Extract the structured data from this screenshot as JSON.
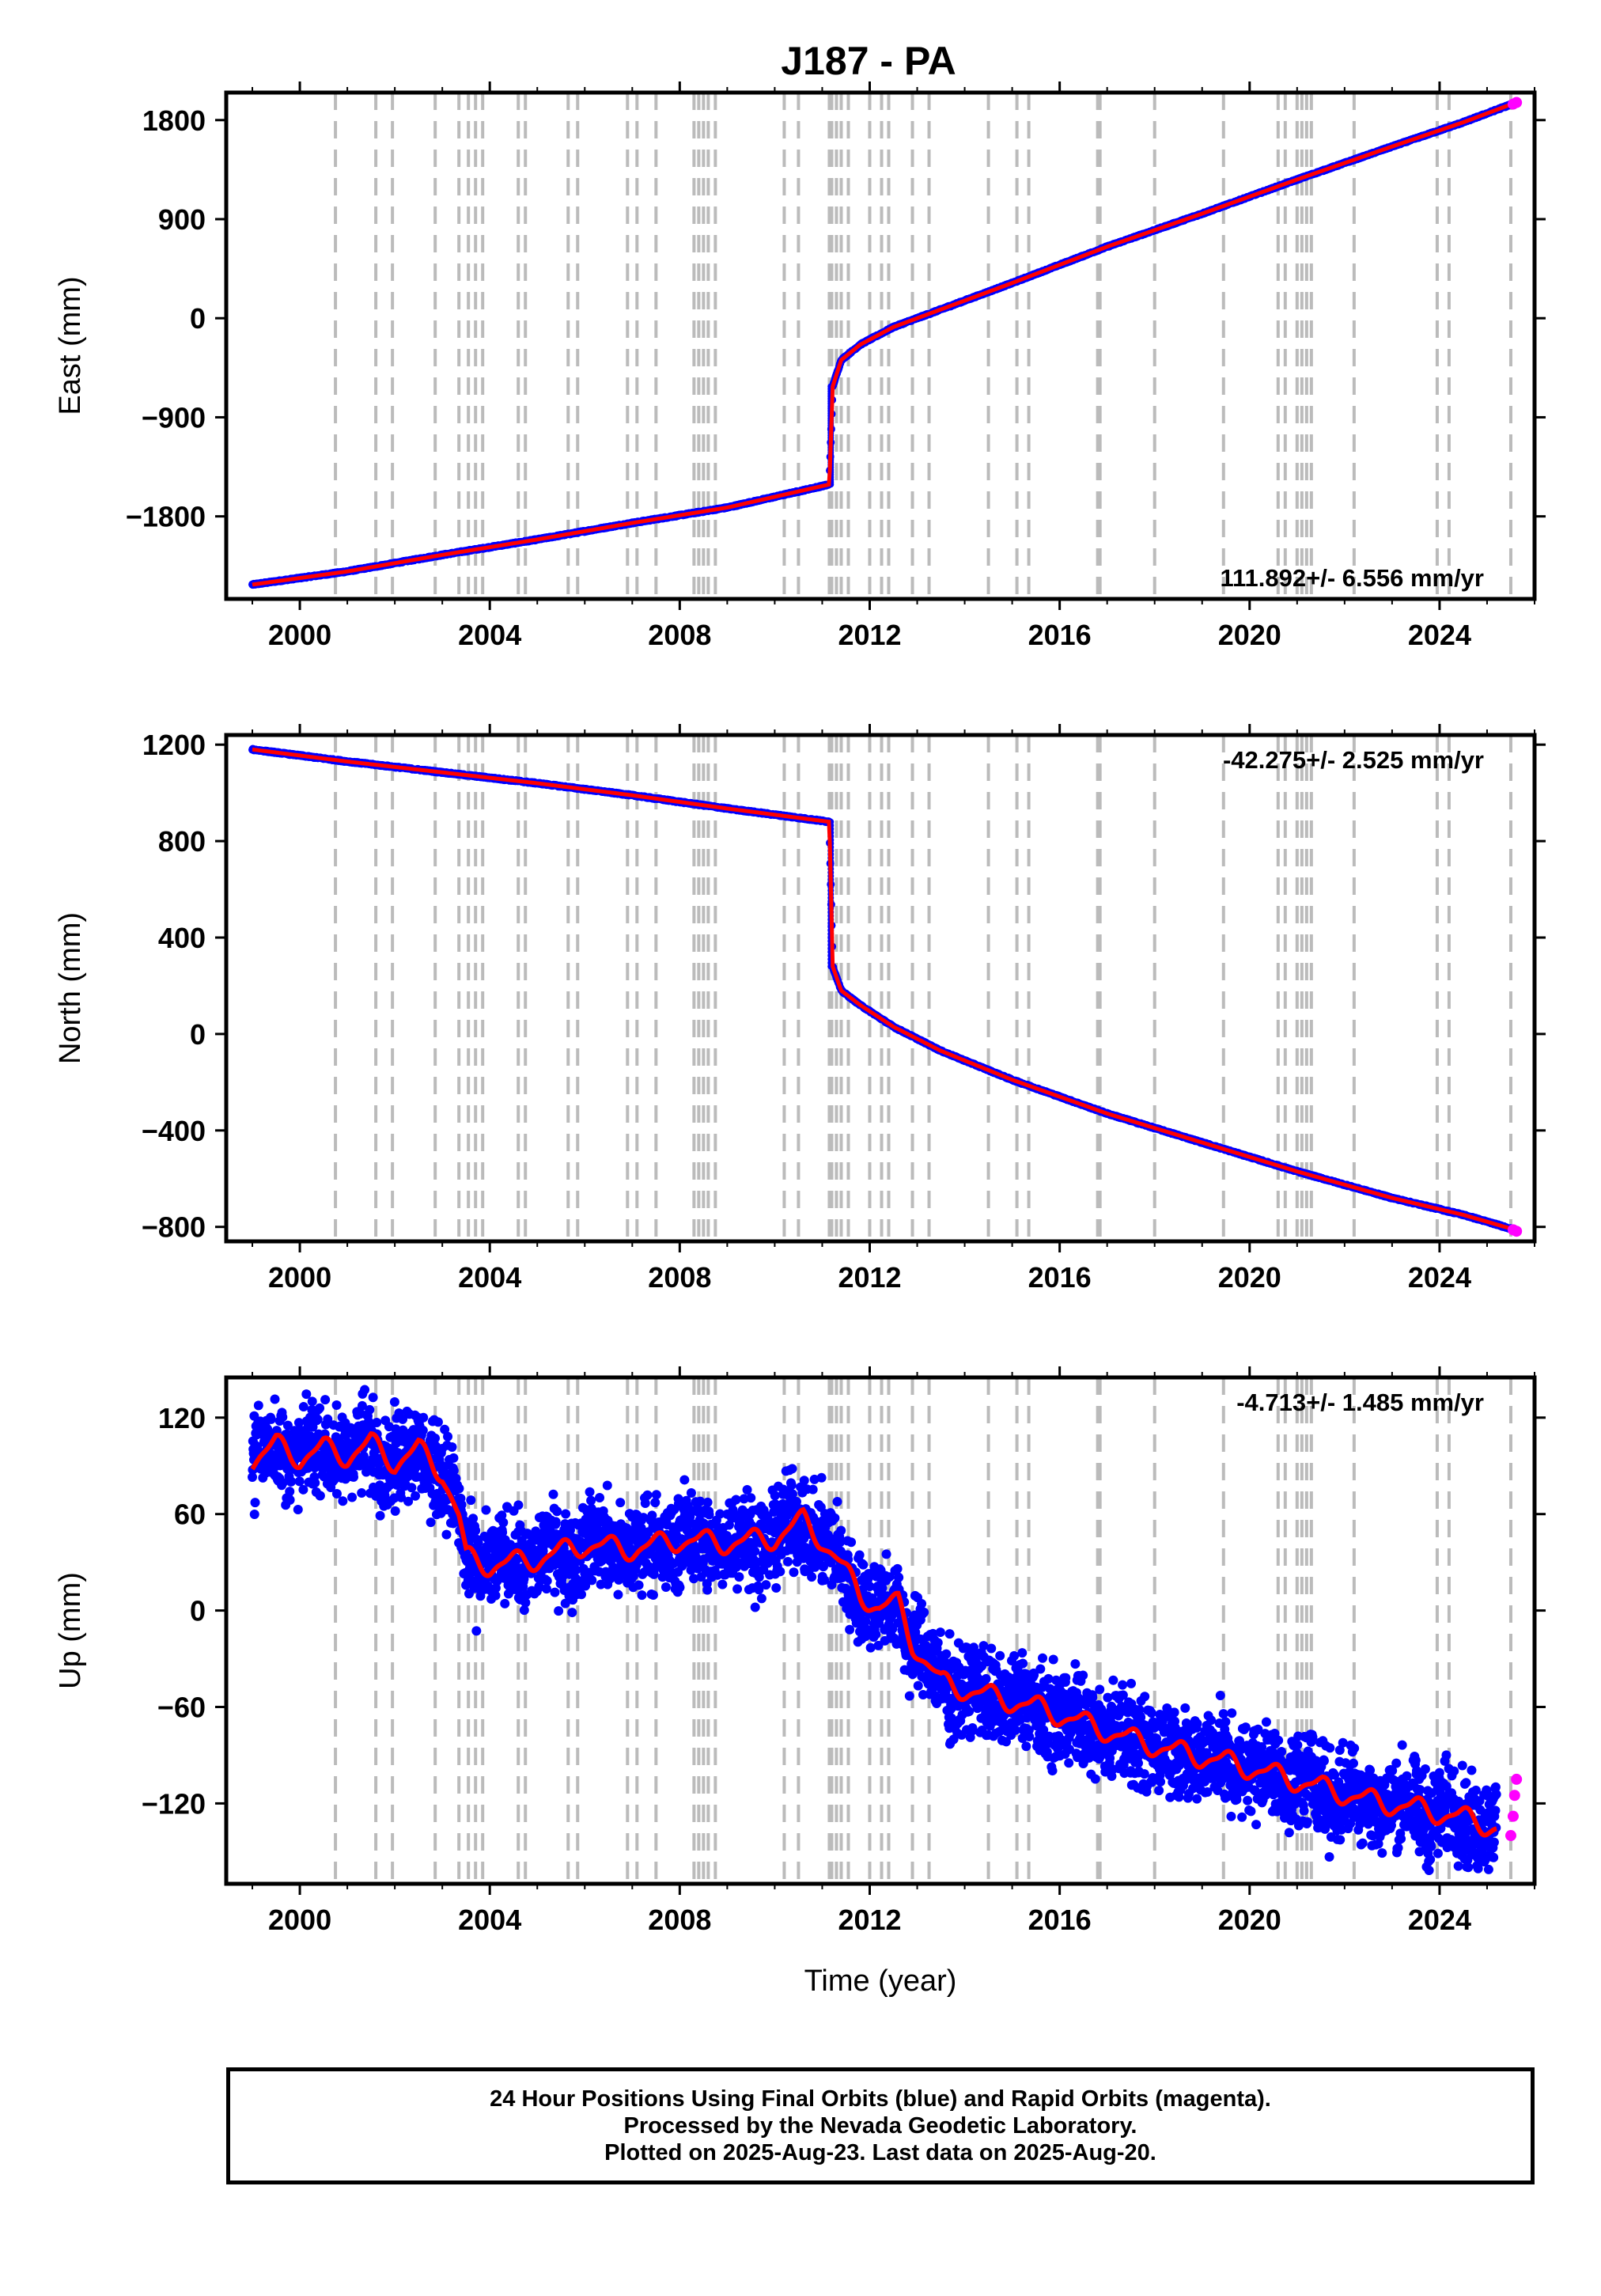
{
  "title": "J187 - PA",
  "caption": {
    "lines": [
      "24 Hour Positions Using Final Orbits (blue) and Rapid Orbits (magenta).",
      "Processed by the Nevada Geodetic Laboratory.",
      "Plotted on 2025-Aug-23. Last data on 2025-Aug-20."
    ]
  },
  "colors": {
    "final_orbits": "#0000ff",
    "rapid_orbits": "#ff00ff",
    "model": "#ff0000",
    "event_lines": "#bbbbbb"
  },
  "chart_data": [
    {
      "type": "scatter",
      "component": "east",
      "ylabel": "East (mm)",
      "xlabel": "",
      "xlim": [
        1998.45,
        2026.0
      ],
      "ylim": [
        -2550,
        2050
      ],
      "xticks": [
        2000,
        2004,
        2008,
        2012,
        2016,
        2020,
        2024
      ],
      "yticks": [
        1800,
        900,
        0,
        -900,
        -1800
      ],
      "ytick_labels": [
        "1800",
        "900",
        "0",
        "−900",
        "−1800"
      ],
      "rate_label": "111.892+/- 6.556 mm/yr",
      "rate_position": "bottom-right",
      "series": [
        {
          "name": "Final Orbits",
          "color": "#0000ff",
          "x": [
            1999.0,
            2001.0,
            2003.0,
            2005.0,
            2007.0,
            2009.0,
            2011.15,
            2011.22,
            2011.4,
            2011.8,
            2012.5,
            2013.5,
            2015.0,
            2017.0,
            2019.0,
            2021.0,
            2023.0,
            2024.5,
            2025.55
          ],
          "y": [
            -2420,
            -2300,
            -2150,
            -2010,
            -1860,
            -1720,
            -1510,
            -620,
            -380,
            -240,
            -80,
            80,
            320,
            650,
            950,
            1260,
            1560,
            1780,
            1950
          ]
        },
        {
          "name": "Rapid Orbits",
          "color": "#ff00ff",
          "x": [
            2025.55,
            2025.62
          ],
          "y": [
            1945,
            1960
          ]
        }
      ]
    },
    {
      "type": "scatter",
      "component": "north",
      "ylabel": "North (mm)",
      "xlabel": "",
      "xlim": [
        1998.45,
        2026.0
      ],
      "ylim": [
        -860,
        1240
      ],
      "xticks": [
        2000,
        2004,
        2008,
        2012,
        2016,
        2020,
        2024
      ],
      "yticks": [
        1200,
        800,
        400,
        0,
        -400,
        -800
      ],
      "ytick_labels": [
        "1200",
        "800",
        "400",
        "0",
        "−400",
        "−800"
      ],
      "rate_label": "-42.275+/- 2.525 mm/yr",
      "rate_position": "top-right",
      "series": [
        {
          "name": "Final Orbits",
          "color": "#0000ff",
          "x": [
            1999.0,
            2001.0,
            2003.0,
            2005.0,
            2007.0,
            2009.0,
            2011.15,
            2011.22,
            2011.4,
            2011.8,
            2012.5,
            2013.5,
            2015.0,
            2017.0,
            2019.0,
            2021.0,
            2023.0,
            2024.5,
            2025.55
          ],
          "y": [
            1180,
            1130,
            1085,
            1040,
            990,
            935,
            880,
            280,
            180,
            120,
            30,
            -70,
            -190,
            -330,
            -450,
            -570,
            -680,
            -750,
            -810
          ]
        },
        {
          "name": "Rapid Orbits",
          "color": "#ff00ff",
          "x": [
            2025.55,
            2025.62
          ],
          "y": [
            -812,
            -818
          ]
        }
      ]
    },
    {
      "type": "scatter",
      "component": "up",
      "ylabel": "Up (mm)",
      "xlabel": "Time (year)",
      "xlim": [
        1998.45,
        2026.0
      ],
      "ylim": [
        -170,
        145
      ],
      "xticks": [
        2000,
        2004,
        2008,
        2012,
        2016,
        2020,
        2024
      ],
      "yticks": [
        120,
        60,
        0,
        -60,
        -120
      ],
      "ytick_labels": [
        "120",
        "60",
        "0",
        "−60",
        "−120"
      ],
      "rate_label": "-4.713+/- 1.485 mm/yr",
      "rate_position": "top-right",
      "series": [
        {
          "name": "Final Orbits",
          "color": "#0000ff",
          "x": [
            1999.0,
            1999.5,
            2000.0,
            2000.5,
            2001.0,
            2001.5,
            2002.0,
            2002.5,
            2003.0,
            2003.35,
            2003.5,
            2004.0,
            2005.0,
            2006.0,
            2007.0,
            2008.0,
            2009.0,
            2010.0,
            2010.6,
            2011.0,
            2011.3,
            2011.8,
            2012.2,
            2012.6,
            2012.9,
            2013.5,
            2014.5,
            2015.5,
            2016.5,
            2017.5,
            2018.5,
            2019.5,
            2020.5,
            2021.5,
            2022.5,
            2023.5,
            2024.5,
            2025.2
          ],
          "y": [
            94,
            103,
            95,
            101,
            96,
            104,
            92,
            100,
            86,
            58,
            33,
            28,
            32,
            41,
            38,
            44,
            42,
            45,
            56,
            44,
            32,
            10,
            2,
            4,
            -20,
            -45,
            -53,
            -60,
            -70,
            -80,
            -88,
            -94,
            -102,
            -110,
            -118,
            -123,
            -129,
            -135
          ]
        },
        {
          "name": "Rapid Orbits",
          "color": "#ff00ff",
          "x": [
            2025.5,
            2025.55,
            2025.58,
            2025.62
          ],
          "y": [
            -140,
            -128,
            -115,
            -105
          ]
        }
      ]
    }
  ],
  "event_years": [
    2000.75,
    2001.6,
    2001.95,
    2002.85,
    2003.35,
    2003.55,
    2003.7,
    2003.85,
    2004.6,
    2004.75,
    2005.65,
    2005.85,
    2006.9,
    2007.1,
    2007.5,
    2008.3,
    2008.4,
    2008.5,
    2008.6,
    2008.75,
    2010.2,
    2010.5,
    2011.15,
    2011.2,
    2011.3,
    2011.4,
    2011.55,
    2012.0,
    2012.25,
    2012.4,
    2012.9,
    2013.25,
    2014.5,
    2015.1,
    2015.35,
    2016.8,
    2016.85,
    2018.0,
    2019.45,
    2020.6,
    2020.75,
    2021.0,
    2021.1,
    2021.2,
    2021.3,
    2022.2,
    2023.95,
    2024.2,
    2025.5
  ]
}
